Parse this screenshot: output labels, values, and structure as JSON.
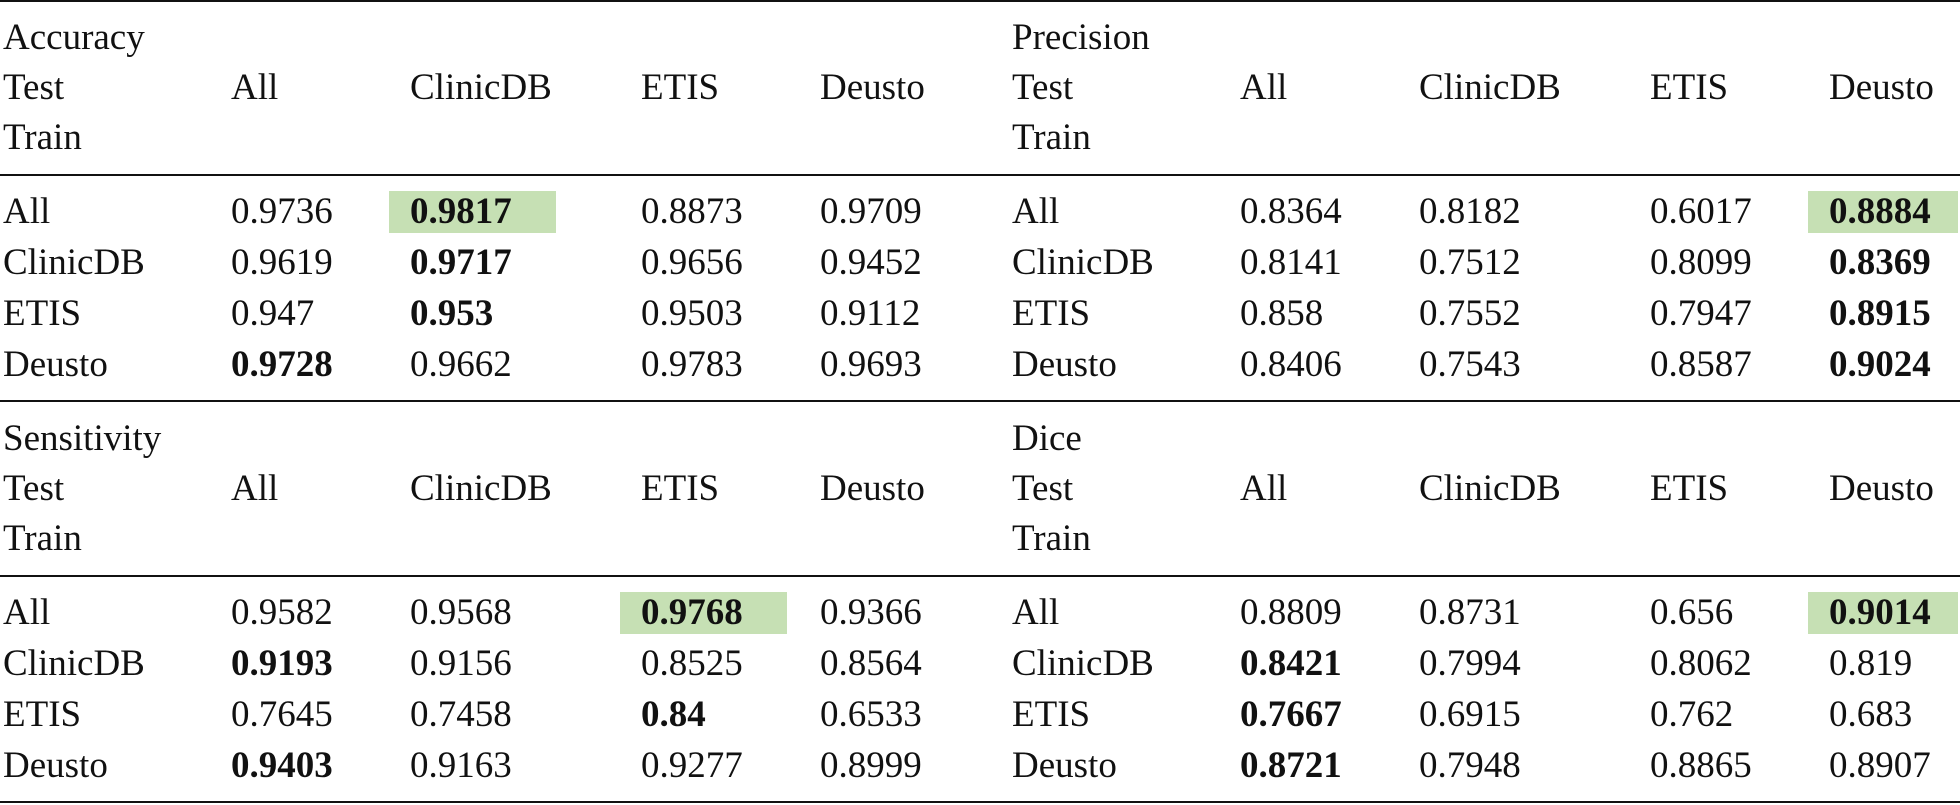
{
  "blocks": [
    {
      "metric": "Accuracy",
      "test_label": "Test",
      "train_label": "Train",
      "columns": [
        "All",
        "ClinicDB",
        "ETIS",
        "Deusto"
      ],
      "rows": [
        {
          "label": "All",
          "values": [
            "0.9736",
            "0.9817",
            "0.8873",
            "0.9709"
          ]
        },
        {
          "label": "ClinicDB",
          "values": [
            "0.9619",
            "0.9717",
            "0.9656",
            "0.9452"
          ]
        },
        {
          "label": "ETIS",
          "values": [
            "0.947",
            "0.953",
            "0.9503",
            "0.9112"
          ]
        },
        {
          "label": "Deusto",
          "values": [
            "0.9728",
            "0.9662",
            "0.9783",
            "0.9693"
          ]
        }
      ]
    },
    {
      "metric": "Precision",
      "test_label": "Test",
      "train_label": "Train",
      "columns": [
        "All",
        "ClinicDB",
        "ETIS",
        "Deusto"
      ],
      "rows": [
        {
          "label": "All",
          "values": [
            "0.8364",
            "0.8182",
            "0.6017",
            "0.8884"
          ]
        },
        {
          "label": "ClinicDB",
          "values": [
            "0.8141",
            "0.7512",
            "0.8099",
            "0.8369"
          ]
        },
        {
          "label": "ETIS",
          "values": [
            "0.858",
            "0.7552",
            "0.7947",
            "0.8915"
          ]
        },
        {
          "label": "Deusto",
          "values": [
            "0.8406",
            "0.7543",
            "0.8587",
            "0.9024"
          ]
        }
      ]
    },
    {
      "metric": "Sensitivity",
      "test_label": "Test",
      "train_label": "Train",
      "columns": [
        "All",
        "ClinicDB",
        "ETIS",
        "Deusto"
      ],
      "rows": [
        {
          "label": "All",
          "values": [
            "0.9582",
            "0.9568",
            "0.9768",
            "0.9366"
          ]
        },
        {
          "label": "ClinicDB",
          "values": [
            "0.9193",
            "0.9156",
            "0.8525",
            "0.8564"
          ]
        },
        {
          "label": "ETIS",
          "values": [
            "0.7645",
            "0.7458",
            "0.84",
            "0.6533"
          ]
        },
        {
          "label": "Deusto",
          "values": [
            "0.9403",
            "0.9163",
            "0.9277",
            "0.8999"
          ]
        }
      ]
    },
    {
      "metric": "Dice",
      "test_label": "Test",
      "train_label": "Train",
      "columns": [
        "All",
        "ClinicDB",
        "ETIS",
        "Deusto"
      ],
      "rows": [
        {
          "label": "All",
          "values": [
            "0.8809",
            "0.8731",
            "0.656",
            "0.9014"
          ]
        },
        {
          "label": "ClinicDB",
          "values": [
            "0.8421",
            "0.7994",
            "0.8062",
            "0.819"
          ]
        },
        {
          "label": "ETIS",
          "values": [
            "0.7667",
            "0.6915",
            "0.762",
            "0.683"
          ]
        },
        {
          "label": "Deusto",
          "values": [
            "0.8721",
            "0.7948",
            "0.8865",
            "0.8907"
          ]
        }
      ]
    }
  ]
}
